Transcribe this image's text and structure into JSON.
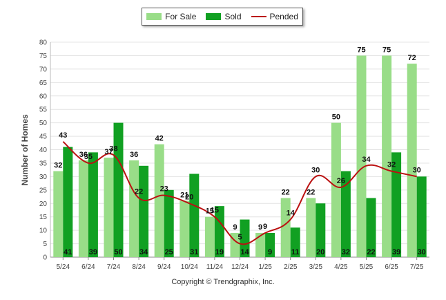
{
  "legend": {
    "for_sale": "For Sale",
    "sold": "Sold",
    "pended": "Pended"
  },
  "footer": {
    "copyright": "Copyright © Trendgraphix, Inc."
  },
  "colors": {
    "for_sale": "#99dd88",
    "sold": "#11a022",
    "pended": "#bb1111",
    "grid": "#e4e4e4"
  },
  "chart_data": {
    "type": "bar",
    "title": "",
    "xlabel": "",
    "ylabel": "Number of Homes",
    "ylim": [
      0,
      80
    ],
    "yticks": [
      0,
      5,
      10,
      15,
      20,
      25,
      30,
      35,
      40,
      45,
      50,
      55,
      60,
      65,
      70,
      75,
      80
    ],
    "grid": true,
    "legend_position": "top-center",
    "categories": [
      "5/24",
      "6/24",
      "7/24",
      "8/24",
      "9/24",
      "10/24",
      "11/24",
      "12/24",
      "1/25",
      "2/25",
      "3/25",
      "4/25",
      "5/25",
      "6/25",
      "7/25"
    ],
    "series": [
      {
        "name": "For Sale",
        "type": "bar",
        "values": [
          32,
          36,
          37,
          36,
          42,
          21,
          15,
          9,
          9,
          22,
          22,
          50,
          75,
          75,
          72
        ]
      },
      {
        "name": "Sold",
        "type": "bar",
        "values": [
          41,
          39,
          50,
          34,
          25,
          31,
          19,
          14,
          9,
          11,
          20,
          32,
          22,
          39,
          30
        ]
      },
      {
        "name": "Pended",
        "type": "line",
        "values": [
          43,
          35,
          38,
          22,
          23,
          20,
          15,
          5,
          9,
          14,
          30,
          26,
          34,
          32,
          30
        ]
      }
    ]
  }
}
